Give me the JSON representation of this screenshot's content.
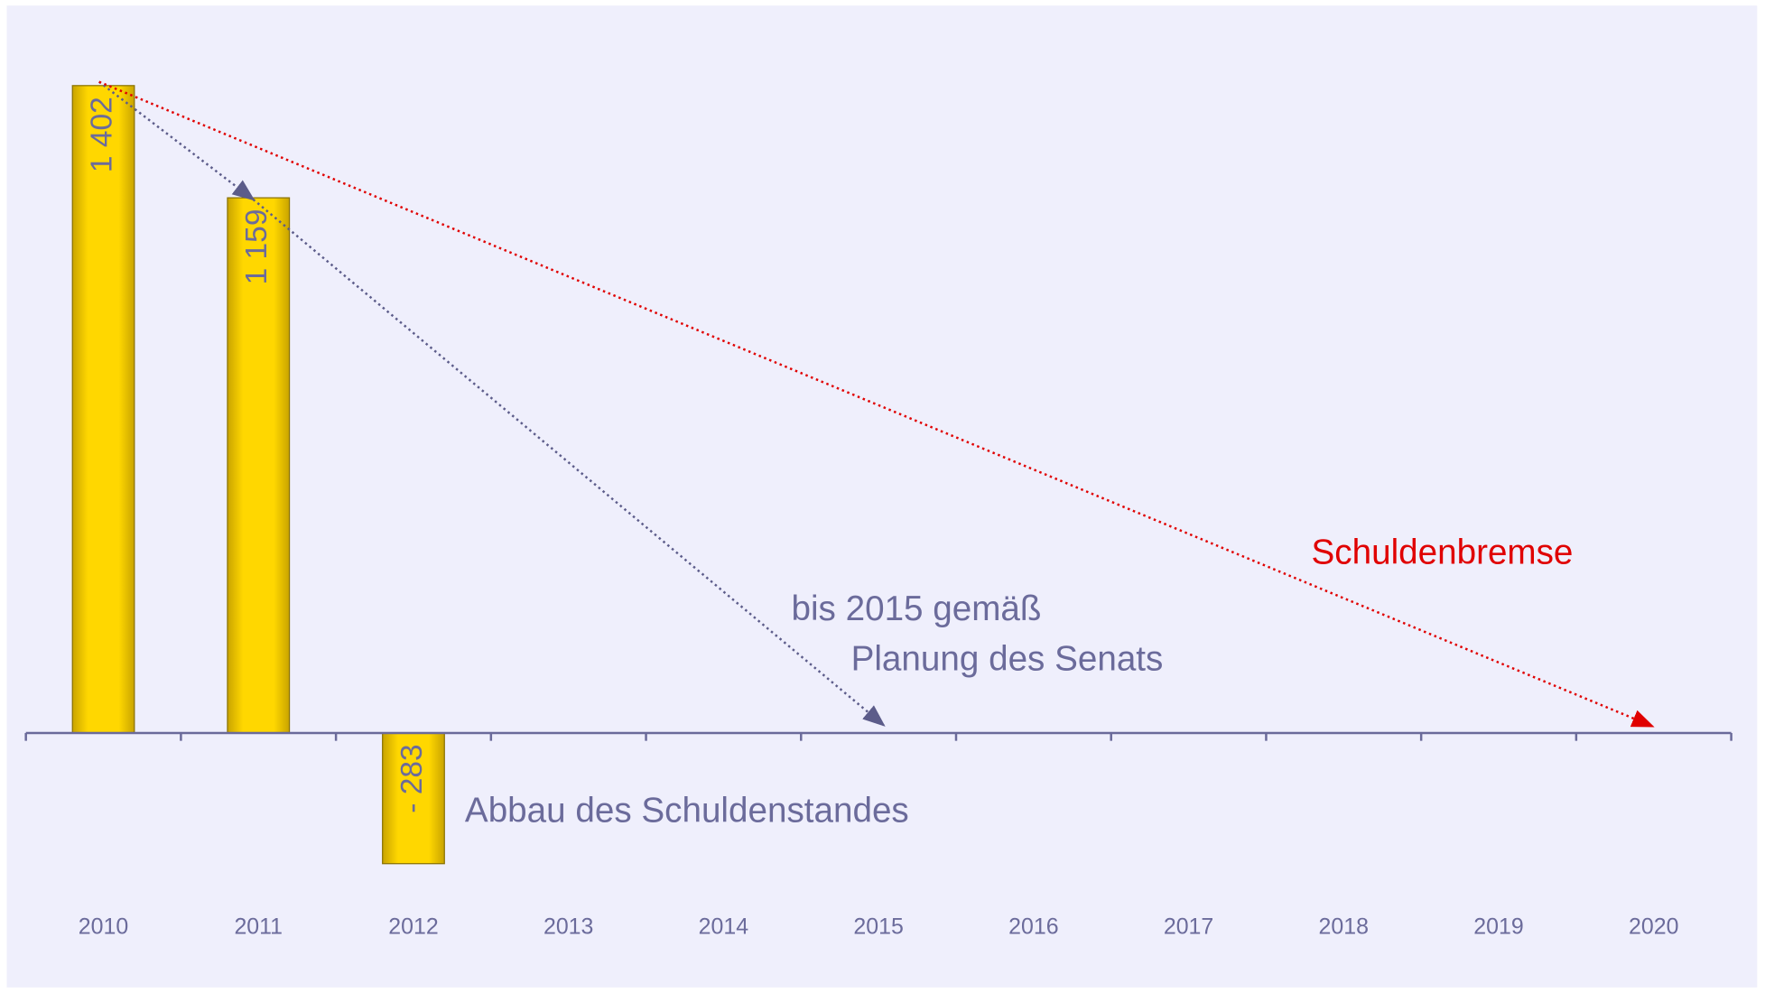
{
  "chart_data": {
    "type": "bar",
    "categories": [
      "2010",
      "2011",
      "2012",
      "2013",
      "2014",
      "2015",
      "2016",
      "2017",
      "2018",
      "2019",
      "2020"
    ],
    "values": [
      1402,
      1159,
      -283,
      null,
      null,
      null,
      null,
      null,
      null,
      null,
      null
    ],
    "value_labels": [
      "1 402",
      "1 159",
      "- 283",
      null,
      null,
      null,
      null,
      null,
      null,
      null,
      null
    ],
    "color": "#ffd700",
    "ylim": [
      -500,
      1500
    ],
    "grid": false,
    "annotations": [
      "Schuldenbremse",
      "bis 2015 gemäß",
      "Planung des Senats",
      "Abbau des Schuldenstandes"
    ]
  }
}
